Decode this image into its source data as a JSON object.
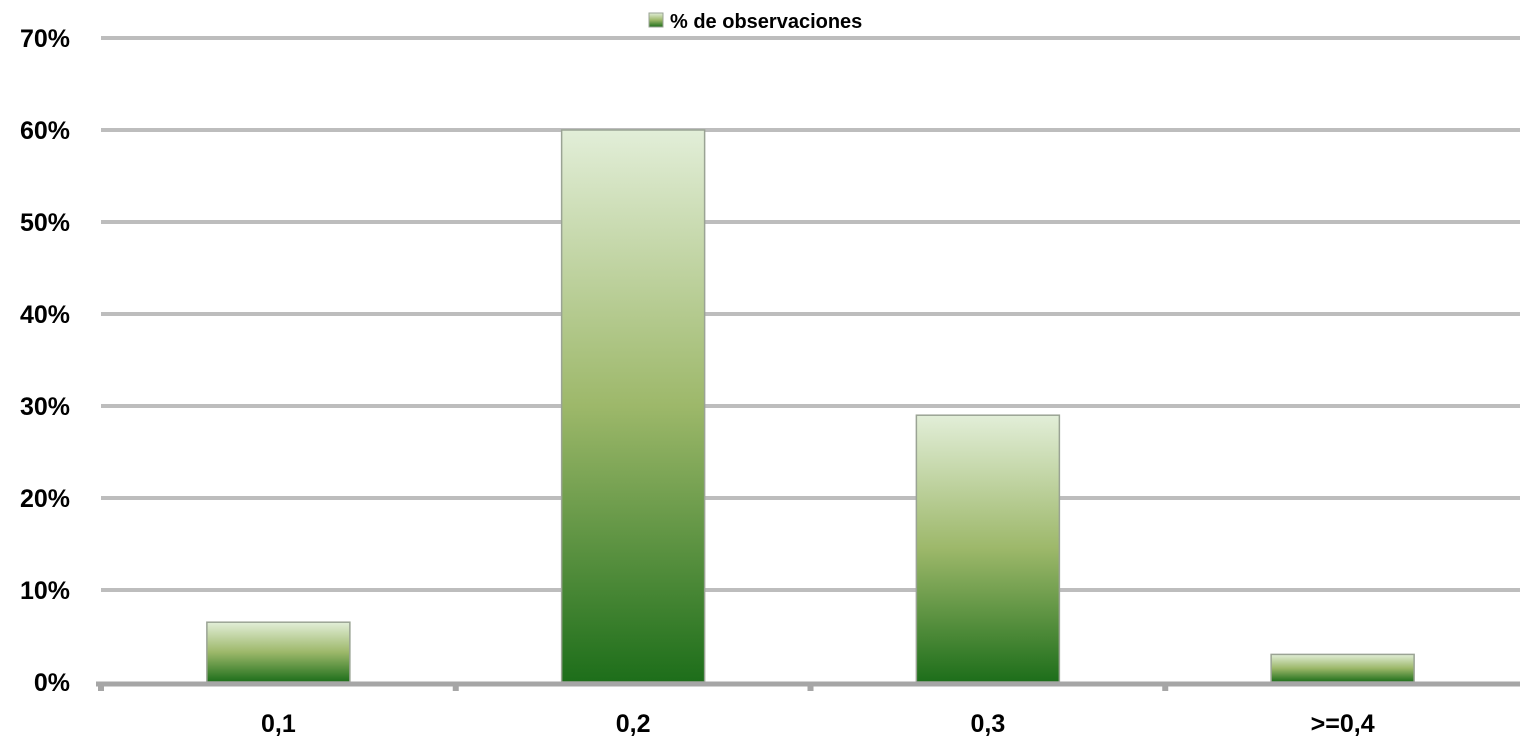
{
  "chart_data": {
    "type": "bar",
    "categories": [
      "0,1",
      "0,2",
      "0,3",
      ">=0,4"
    ],
    "series": [
      {
        "name": "% de observaciones",
        "values": [
          6.5,
          60.0,
          29.0,
          3.0
        ]
      }
    ],
    "y_ticks": [
      "0%",
      "10%",
      "20%",
      "30%",
      "40%",
      "50%",
      "60%",
      "70%"
    ],
    "ylim": [
      0,
      70
    ],
    "y_unit": "%",
    "grid": true,
    "legend_position": "top-center",
    "colors": {
      "bar_dark": "#1d6e1a",
      "bar_mid": "#9db86a",
      "bar_light": "#e2eed8",
      "bar_border": "#9aa394",
      "grid": "#bdbdbd",
      "axis": "#a6a6a6"
    }
  }
}
